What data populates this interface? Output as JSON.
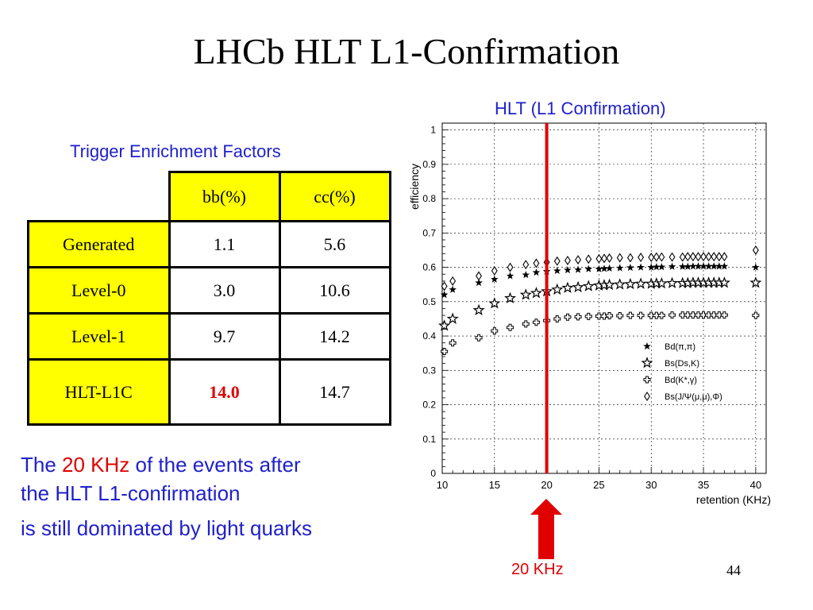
{
  "slide": {
    "title": "LHCb HLT L1-Confirmation",
    "table_title": "Trigger Enrichment Factors",
    "page_number": "44",
    "note_line1_pre": "The ",
    "note_line1_hi": "20 KHz",
    "note_line1_post": " of the events after",
    "note_line2": "the HLT L1-confirmation",
    "note_line3": "is still dominated by light quarks",
    "chart_title": "HLT (L1 Confirmation)",
    "arrow_label": "20 KHz",
    "colors": {
      "blue_text": "#1f1fcc",
      "red": "#e00000",
      "yellow": "#ffff00"
    }
  },
  "table": {
    "headers": [
      "bb(%)",
      "cc(%)"
    ],
    "rows": [
      {
        "label": "Generated",
        "bb": "1.1",
        "cc": "5.6"
      },
      {
        "label": "Level-0",
        "bb": "3.0",
        "cc": "10.6"
      },
      {
        "label": "Level-1",
        "bb": "9.7",
        "cc": "14.2"
      },
      {
        "label": "HLT-L1C",
        "bb": "14.0",
        "cc": "14.7"
      }
    ]
  },
  "chart_data": {
    "type": "scatter",
    "xlabel": "retention (KHz)",
    "ylabel": "efficiency",
    "xlim": [
      10,
      41
    ],
    "ylim": [
      0,
      1.02
    ],
    "xticks": [
      10,
      15,
      20,
      25,
      30,
      35,
      40
    ],
    "yticks": [
      0,
      0.1,
      0.2,
      0.3,
      0.4,
      0.5,
      0.6,
      0.7,
      0.8,
      0.9,
      1
    ],
    "ytick_labels": [
      "0",
      "0.1",
      "0.2",
      "0.3",
      "0.4",
      "0.5",
      "0.6",
      "0.7",
      "0.8",
      "0.9",
      "1"
    ],
    "grid": true,
    "vline_x": 20,
    "legend_position": "bottom-right",
    "series": [
      {
        "name": "Bd(π,π)",
        "marker": "star-small",
        "x": [
          10.2,
          11,
          13.5,
          15,
          16.5,
          18,
          19,
          20,
          21,
          22,
          23,
          24,
          25,
          25.5,
          26,
          27,
          28,
          29,
          30,
          30.5,
          31,
          32,
          33,
          33.5,
          34,
          34.5,
          35,
          35.5,
          36,
          36.5,
          37,
          40
        ],
        "y": [
          0.52,
          0.535,
          0.555,
          0.565,
          0.575,
          0.578,
          0.585,
          0.588,
          0.59,
          0.592,
          0.593,
          0.595,
          0.595,
          0.596,
          0.597,
          0.598,
          0.599,
          0.6,
          0.6,
          0.601,
          0.601,
          0.602,
          0.602,
          0.602,
          0.603,
          0.603,
          0.603,
          0.603,
          0.603,
          0.603,
          0.603,
          0.6
        ]
      },
      {
        "name": "Bs(Ds,K)",
        "marker": "star-large",
        "x": [
          10.2,
          11,
          13.5,
          15,
          16.5,
          18,
          19,
          20,
          21,
          22,
          23,
          24,
          25,
          25.5,
          26,
          27,
          28,
          29,
          30,
          30.5,
          31,
          32,
          33,
          33.5,
          34,
          34.5,
          35,
          35.5,
          36,
          36.5,
          37,
          40
        ],
        "y": [
          0.43,
          0.45,
          0.475,
          0.495,
          0.51,
          0.52,
          0.525,
          0.53,
          0.535,
          0.54,
          0.542,
          0.545,
          0.547,
          0.548,
          0.549,
          0.55,
          0.551,
          0.552,
          0.552,
          0.553,
          0.553,
          0.554,
          0.554,
          0.554,
          0.555,
          0.555,
          0.555,
          0.555,
          0.555,
          0.555,
          0.555,
          0.555
        ]
      },
      {
        "name": "Bd(K*,γ)",
        "marker": "cross-circle",
        "x": [
          10.2,
          11,
          13.5,
          15,
          16.5,
          18,
          19,
          20,
          21,
          22,
          23,
          24,
          25,
          25.5,
          26,
          27,
          28,
          29,
          30,
          30.5,
          31,
          32,
          33,
          33.5,
          34,
          34.5,
          35,
          35.5,
          36,
          36.5,
          37,
          40
        ],
        "y": [
          0.355,
          0.38,
          0.395,
          0.415,
          0.425,
          0.435,
          0.44,
          0.445,
          0.45,
          0.455,
          0.456,
          0.457,
          0.458,
          0.458,
          0.459,
          0.459,
          0.46,
          0.46,
          0.46,
          0.46,
          0.46,
          0.461,
          0.461,
          0.461,
          0.461,
          0.461,
          0.461,
          0.461,
          0.461,
          0.461,
          0.461,
          0.46
        ]
      },
      {
        "name": "Bs(J/Ψ(μ,μ),Φ)",
        "marker": "diamond",
        "x": [
          10.2,
          11,
          13.5,
          15,
          16.5,
          18,
          19,
          20,
          21,
          22,
          23,
          24,
          25,
          25.5,
          26,
          27,
          28,
          29,
          30,
          30.5,
          31,
          32,
          33,
          33.5,
          34,
          34.5,
          35,
          35.5,
          36,
          36.5,
          37,
          40
        ],
        "y": [
          0.545,
          0.56,
          0.575,
          0.59,
          0.6,
          0.608,
          0.612,
          0.615,
          0.618,
          0.62,
          0.622,
          0.624,
          0.625,
          0.626,
          0.627,
          0.628,
          0.628,
          0.629,
          0.629,
          0.63,
          0.63,
          0.63,
          0.63,
          0.631,
          0.631,
          0.631,
          0.631,
          0.631,
          0.631,
          0.631,
          0.631,
          0.65
        ]
      }
    ]
  }
}
